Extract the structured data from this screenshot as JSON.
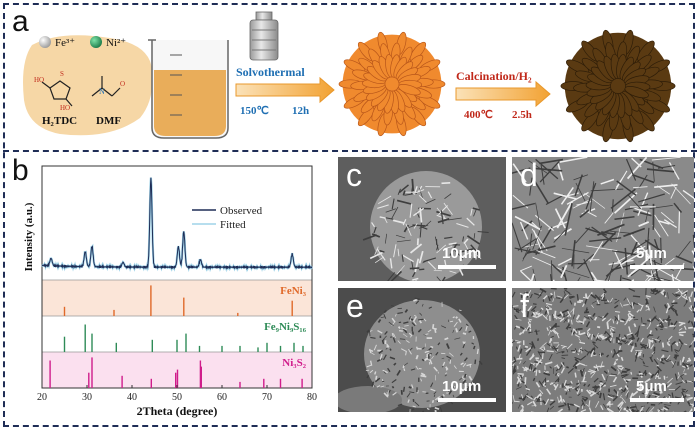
{
  "panel_a": {
    "label": "a",
    "ions": [
      "Fe³⁺",
      "Ni²⁺"
    ],
    "ligand": "H₂TDC",
    "solvent": "DMF",
    "step1": {
      "label": "Solvothermal",
      "temp": "150℃",
      "time": "12h"
    },
    "step2": {
      "label": "Calcination/H₂",
      "temp": "400℃",
      "time": "2.5h"
    },
    "colors": {
      "step1": "#1f6fb3",
      "step2": "#c0281a",
      "flask_fill": "#e9ad5a",
      "flower1": "#f08a2e",
      "flower2": "#5a3a12",
      "blob": "#f6d7a6"
    }
  },
  "panel_b": {
    "label": "b",
    "chart_data": {
      "type": "line",
      "xlabel": "2Theta (degree)",
      "ylabel": "Intensity (a.u.)",
      "xlim": [
        20,
        80
      ],
      "xticks": [
        20,
        30,
        40,
        50,
        60,
        70,
        80
      ],
      "series": [
        {
          "name": "Observed",
          "color": "#1f2d56",
          "peaks": [
            [
              22.0,
              0.08
            ],
            [
              29.6,
              0.16
            ],
            [
              31.1,
              0.22
            ],
            [
              38.0,
              0.05
            ],
            [
              44.2,
              0.95
            ],
            [
              50.3,
              0.22
            ],
            [
              51.5,
              0.38
            ],
            [
              55.2,
              0.08
            ],
            [
              75.6,
              0.14
            ]
          ]
        },
        {
          "name": "Fitted",
          "color": "#9fd3e8"
        }
      ],
      "references": [
        {
          "name": "FeNi₃",
          "color": "#e0692a",
          "background": "#fbe5d8",
          "peaks": [
            [
              25.0,
              0.3
            ],
            [
              36.0,
              0.2
            ],
            [
              44.2,
              1.0
            ],
            [
              51.5,
              0.6
            ],
            [
              63.5,
              0.1
            ],
            [
              75.6,
              0.5
            ]
          ]
        },
        {
          "name": "Fe₉Ni₉S₁₆",
          "color": "#2e8b57",
          "background": "#ffffff",
          "peaks": [
            [
              25.0,
              0.5
            ],
            [
              29.6,
              0.9
            ],
            [
              31.1,
              0.6
            ],
            [
              36.5,
              0.3
            ],
            [
              44.5,
              0.4
            ],
            [
              50.0,
              0.4
            ],
            [
              52.0,
              0.6
            ],
            [
              55.0,
              0.2
            ],
            [
              60.0,
              0.2
            ],
            [
              64.0,
              0.2
            ],
            [
              68.0,
              0.15
            ],
            [
              70.0,
              0.3
            ],
            [
              73.0,
              0.2
            ],
            [
              76.0,
              0.3
            ],
            [
              78.0,
              0.2
            ]
          ]
        },
        {
          "name": "Ni₃S₂",
          "color": "#d01c8b",
          "background": "#fbe0ef",
          "peaks": [
            [
              21.8,
              0.9
            ],
            [
              30.4,
              0.5
            ],
            [
              31.1,
              1.0
            ],
            [
              37.8,
              0.4
            ],
            [
              44.3,
              0.3
            ],
            [
              49.7,
              0.5
            ],
            [
              50.1,
              0.6
            ],
            [
              55.2,
              0.9
            ],
            [
              55.4,
              0.7
            ],
            [
              64.0,
              0.2
            ],
            [
              69.3,
              0.3
            ],
            [
              73.0,
              0.3
            ],
            [
              77.8,
              0.3
            ]
          ]
        }
      ]
    }
  },
  "sem": [
    {
      "label": "c",
      "scale": "10μm"
    },
    {
      "label": "d",
      "scale": "5μm"
    },
    {
      "label": "e",
      "scale": "10μm"
    },
    {
      "label": "f",
      "scale": "5μm"
    }
  ]
}
